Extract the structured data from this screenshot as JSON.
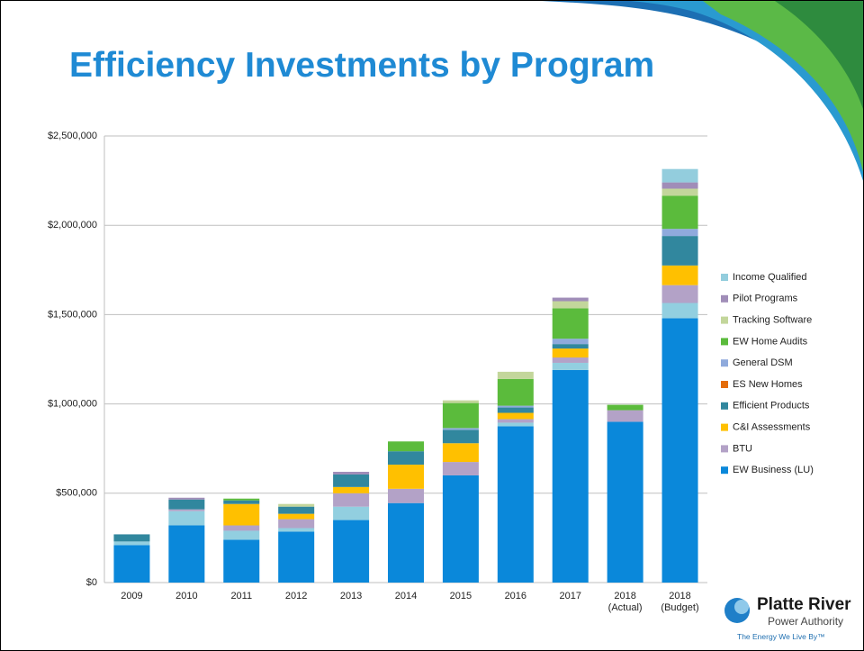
{
  "title": "Efficiency Investments by Program",
  "logo": {
    "name": "Platte River",
    "subtitle": "Power Authority",
    "tagline": "The Energy We Live By™"
  },
  "chart_data": {
    "type": "stacked_bar",
    "categories": [
      "2009",
      "2010",
      "2011",
      "2012",
      "2013",
      "2014",
      "2015",
      "2016",
      "2017",
      "2018 (Actual)",
      "2018 (Budget)"
    ],
    "ylim": [
      0,
      2500000
    ],
    "yticks": [
      {
        "value": 0,
        "label": "$0"
      },
      {
        "value": 500000,
        "label": "$500,000"
      },
      {
        "value": 1000000,
        "label": "$1,000,000"
      },
      {
        "value": 1500000,
        "label": "$1,500,000"
      },
      {
        "value": 2000000,
        "label": "$2,000,000"
      },
      {
        "value": 2500000,
        "label": "$2,500,000"
      }
    ],
    "grid": true,
    "series": [
      {
        "name": "EW Business (LU)",
        "color": "#0a88da",
        "values": [
          210000,
          320000,
          240000,
          285000,
          350000,
          445000,
          600000,
          875000,
          1190000,
          900000,
          1480000
        ]
      },
      {
        "color": "#92cfe0",
        "values": [
          20000,
          80000,
          50000,
          20000,
          75000,
          0,
          0,
          20000,
          40000,
          0,
          85000
        ]
      },
      {
        "name": "BTU",
        "color": "#b3a2c7",
        "values": [
          0,
          10000,
          30000,
          50000,
          75000,
          80000,
          75000,
          20000,
          30000,
          65000,
          100000
        ]
      },
      {
        "name": "C&I Assessments",
        "color": "#ffc000",
        "values": [
          0,
          0,
          120000,
          30000,
          35000,
          135000,
          105000,
          35000,
          50000,
          0,
          110000
        ]
      },
      {
        "name": "Efficient Products",
        "color": "#31879e",
        "values": [
          40000,
          55000,
          20000,
          40000,
          70000,
          75000,
          75000,
          30000,
          25000,
          0,
          165000
        ]
      },
      {
        "name": "ES New Homes",
        "color": "#e46c0a",
        "values": [
          0,
          0,
          0,
          0,
          0,
          0,
          0,
          0,
          0,
          0,
          0
        ]
      },
      {
        "name": "General DSM",
        "color": "#8faadc",
        "values": [
          0,
          0,
          0,
          0,
          0,
          0,
          10000,
          10000,
          30000,
          0,
          40000
        ]
      },
      {
        "name": "EW Home Audits",
        "color": "#5bbb3c",
        "values": [
          0,
          0,
          10000,
          0,
          0,
          55000,
          140000,
          150000,
          170000,
          30000,
          185000
        ]
      },
      {
        "name": "Tracking Software",
        "color": "#c3d69b",
        "values": [
          0,
          0,
          0,
          15000,
          0,
          0,
          15000,
          40000,
          40000,
          0,
          40000
        ]
      },
      {
        "name": "Pilot Programs",
        "color": "#a08db8",
        "values": [
          0,
          10000,
          0,
          0,
          15000,
          0,
          0,
          0,
          20000,
          0,
          35000
        ]
      },
      {
        "name": "Income Qualified",
        "color": "#93cddd",
        "values": [
          0,
          0,
          0,
          0,
          0,
          0,
          0,
          0,
          0,
          0,
          75000
        ]
      }
    ]
  }
}
